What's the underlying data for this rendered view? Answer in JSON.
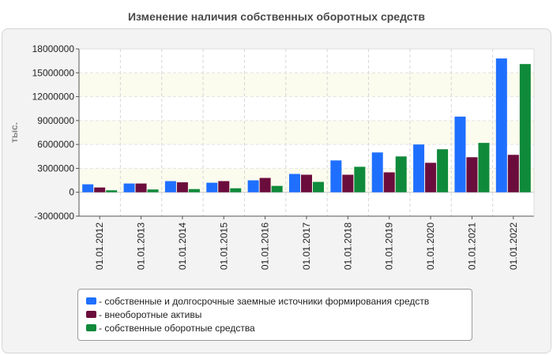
{
  "chart_data": {
    "type": "bar",
    "title": "Изменение наличия собственных оборотных средств",
    "ylabel": "тыс.",
    "xlabel": "",
    "ylim": [
      -3000000,
      18000000
    ],
    "yticks": [
      -3000000,
      0,
      3000000,
      6000000,
      9000000,
      12000000,
      15000000,
      18000000
    ],
    "categories": [
      "01.01.2012",
      "01.01.2013",
      "01.01.2014",
      "01.01.2015",
      "01.01.2016",
      "01.01.2017",
      "01.01.2018",
      "01.01.2019",
      "01.01.2020",
      "01.01.2021",
      "01.01.2022"
    ],
    "series": [
      {
        "name": "- собственные и долгосрочные заемные источники формирования средств",
        "color": "#1f6fff",
        "values": [
          1000000,
          1100000,
          1400000,
          1200000,
          1500000,
          2300000,
          4000000,
          5000000,
          6000000,
          9500000,
          16800000
        ]
      },
      {
        "name": "- внеоборотные активы",
        "color": "#6b0d3c",
        "values": [
          600000,
          1100000,
          1250000,
          1400000,
          1800000,
          2200000,
          2200000,
          2500000,
          3700000,
          4400000,
          4700000
        ]
      },
      {
        "name": "- собственные оборотные средства",
        "color": "#0f8a3a",
        "values": [
          250000,
          350000,
          400000,
          500000,
          800000,
          1300000,
          3200000,
          4500000,
          5400000,
          6200000,
          16100000
        ]
      }
    ],
    "grid": true,
    "legend": "bottom"
  }
}
